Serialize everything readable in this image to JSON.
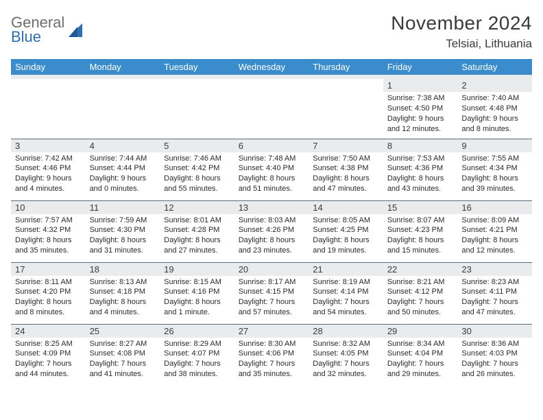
{
  "logo": {
    "line1": "General",
    "line2": "Blue",
    "color_gray": "#6d6d6d",
    "color_blue": "#2f6fb3"
  },
  "title": "November 2024",
  "location": "Telsiai, Lithuania",
  "header_bg": "#3b8ccc",
  "header_fg": "#ffffff",
  "daynum_bg": "#e9ebec",
  "border_color": "#5a6b7a",
  "background": "#ffffff",
  "font_family": "Arial",
  "title_fontsize": 28,
  "location_fontsize": 17,
  "header_fontsize": 13,
  "cell_fontsize": 11,
  "columns": [
    "Sunday",
    "Monday",
    "Tuesday",
    "Wednesday",
    "Thursday",
    "Friday",
    "Saturday"
  ],
  "weeks": [
    [
      null,
      null,
      null,
      null,
      null,
      {
        "n": "1",
        "sr": "7:38 AM",
        "ss": "4:50 PM",
        "dl": "9 hours and 12 minutes."
      },
      {
        "n": "2",
        "sr": "7:40 AM",
        "ss": "4:48 PM",
        "dl": "9 hours and 8 minutes."
      }
    ],
    [
      {
        "n": "3",
        "sr": "7:42 AM",
        "ss": "4:46 PM",
        "dl": "9 hours and 4 minutes."
      },
      {
        "n": "4",
        "sr": "7:44 AM",
        "ss": "4:44 PM",
        "dl": "9 hours and 0 minutes."
      },
      {
        "n": "5",
        "sr": "7:46 AM",
        "ss": "4:42 PM",
        "dl": "8 hours and 55 minutes."
      },
      {
        "n": "6",
        "sr": "7:48 AM",
        "ss": "4:40 PM",
        "dl": "8 hours and 51 minutes."
      },
      {
        "n": "7",
        "sr": "7:50 AM",
        "ss": "4:38 PM",
        "dl": "8 hours and 47 minutes."
      },
      {
        "n": "8",
        "sr": "7:53 AM",
        "ss": "4:36 PM",
        "dl": "8 hours and 43 minutes."
      },
      {
        "n": "9",
        "sr": "7:55 AM",
        "ss": "4:34 PM",
        "dl": "8 hours and 39 minutes."
      }
    ],
    [
      {
        "n": "10",
        "sr": "7:57 AM",
        "ss": "4:32 PM",
        "dl": "8 hours and 35 minutes."
      },
      {
        "n": "11",
        "sr": "7:59 AM",
        "ss": "4:30 PM",
        "dl": "8 hours and 31 minutes."
      },
      {
        "n": "12",
        "sr": "8:01 AM",
        "ss": "4:28 PM",
        "dl": "8 hours and 27 minutes."
      },
      {
        "n": "13",
        "sr": "8:03 AM",
        "ss": "4:26 PM",
        "dl": "8 hours and 23 minutes."
      },
      {
        "n": "14",
        "sr": "8:05 AM",
        "ss": "4:25 PM",
        "dl": "8 hours and 19 minutes."
      },
      {
        "n": "15",
        "sr": "8:07 AM",
        "ss": "4:23 PM",
        "dl": "8 hours and 15 minutes."
      },
      {
        "n": "16",
        "sr": "8:09 AM",
        "ss": "4:21 PM",
        "dl": "8 hours and 12 minutes."
      }
    ],
    [
      {
        "n": "17",
        "sr": "8:11 AM",
        "ss": "4:20 PM",
        "dl": "8 hours and 8 minutes."
      },
      {
        "n": "18",
        "sr": "8:13 AM",
        "ss": "4:18 PM",
        "dl": "8 hours and 4 minutes."
      },
      {
        "n": "19",
        "sr": "8:15 AM",
        "ss": "4:16 PM",
        "dl": "8 hours and 1 minute."
      },
      {
        "n": "20",
        "sr": "8:17 AM",
        "ss": "4:15 PM",
        "dl": "7 hours and 57 minutes."
      },
      {
        "n": "21",
        "sr": "8:19 AM",
        "ss": "4:14 PM",
        "dl": "7 hours and 54 minutes."
      },
      {
        "n": "22",
        "sr": "8:21 AM",
        "ss": "4:12 PM",
        "dl": "7 hours and 50 minutes."
      },
      {
        "n": "23",
        "sr": "8:23 AM",
        "ss": "4:11 PM",
        "dl": "7 hours and 47 minutes."
      }
    ],
    [
      {
        "n": "24",
        "sr": "8:25 AM",
        "ss": "4:09 PM",
        "dl": "7 hours and 44 minutes."
      },
      {
        "n": "25",
        "sr": "8:27 AM",
        "ss": "4:08 PM",
        "dl": "7 hours and 41 minutes."
      },
      {
        "n": "26",
        "sr": "8:29 AM",
        "ss": "4:07 PM",
        "dl": "7 hours and 38 minutes."
      },
      {
        "n": "27",
        "sr": "8:30 AM",
        "ss": "4:06 PM",
        "dl": "7 hours and 35 minutes."
      },
      {
        "n": "28",
        "sr": "8:32 AM",
        "ss": "4:05 PM",
        "dl": "7 hours and 32 minutes."
      },
      {
        "n": "29",
        "sr": "8:34 AM",
        "ss": "4:04 PM",
        "dl": "7 hours and 29 minutes."
      },
      {
        "n": "30",
        "sr": "8:36 AM",
        "ss": "4:03 PM",
        "dl": "7 hours and 26 minutes."
      }
    ]
  ],
  "labels": {
    "sunrise": "Sunrise:",
    "sunset": "Sunset:",
    "daylight": "Daylight:"
  }
}
